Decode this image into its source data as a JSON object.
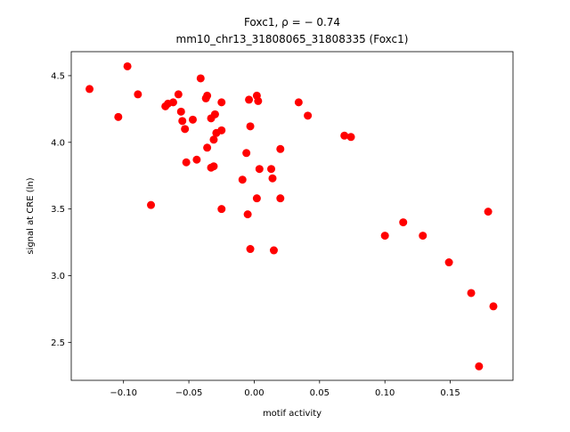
{
  "chart_data": {
    "type": "scatter",
    "title_line1": "Foxc1, ρ = − 0.74",
    "title_line2": "mm10_chr13_31808065_31808335 (Foxc1)",
    "xlabel": "motif activity",
    "ylabel": "signal at CRE (ln)",
    "xlim": [
      -0.14,
      0.198
    ],
    "ylim": [
      2.215,
      4.68
    ],
    "x_ticks": [
      {
        "value": -0.1,
        "label": "−0.10"
      },
      {
        "value": -0.05,
        "label": "−0.05"
      },
      {
        "value": 0.0,
        "label": "0.00"
      },
      {
        "value": 0.05,
        "label": "0.05"
      },
      {
        "value": 0.1,
        "label": "0.10"
      },
      {
        "value": 0.15,
        "label": "0.15"
      }
    ],
    "y_ticks": [
      {
        "value": 2.5,
        "label": "2.5"
      },
      {
        "value": 3.0,
        "label": "3.0"
      },
      {
        "value": 3.5,
        "label": "3.5"
      },
      {
        "value": 4.0,
        "label": "4.0"
      },
      {
        "value": 4.5,
        "label": "4.5"
      }
    ],
    "grid": false,
    "marker_color": "#ff0000",
    "points": [
      {
        "x": -0.126,
        "y": 4.4
      },
      {
        "x": -0.104,
        "y": 4.19
      },
      {
        "x": -0.097,
        "y": 4.57
      },
      {
        "x": -0.089,
        "y": 4.36
      },
      {
        "x": -0.079,
        "y": 3.53
      },
      {
        "x": -0.068,
        "y": 4.27
      },
      {
        "x": -0.066,
        "y": 4.29
      },
      {
        "x": -0.062,
        "y": 4.3
      },
      {
        "x": -0.058,
        "y": 4.36
      },
      {
        "x": -0.056,
        "y": 4.23
      },
      {
        "x": -0.055,
        "y": 4.16
      },
      {
        "x": -0.053,
        "y": 4.1
      },
      {
        "x": -0.052,
        "y": 3.85
      },
      {
        "x": -0.047,
        "y": 4.17
      },
      {
        "x": -0.044,
        "y": 3.87
      },
      {
        "x": -0.041,
        "y": 4.48
      },
      {
        "x": -0.037,
        "y": 4.33
      },
      {
        "x": -0.036,
        "y": 4.35
      },
      {
        "x": -0.036,
        "y": 3.96
      },
      {
        "x": -0.033,
        "y": 4.18
      },
      {
        "x": -0.033,
        "y": 3.81
      },
      {
        "x": -0.031,
        "y": 4.02
      },
      {
        "x": -0.031,
        "y": 3.82
      },
      {
        "x": -0.03,
        "y": 4.21
      },
      {
        "x": -0.029,
        "y": 4.07
      },
      {
        "x": -0.025,
        "y": 4.09
      },
      {
        "x": -0.025,
        "y": 4.3
      },
      {
        "x": -0.025,
        "y": 3.5
      },
      {
        "x": -0.009,
        "y": 3.72
      },
      {
        "x": -0.006,
        "y": 3.92
      },
      {
        "x": -0.005,
        "y": 3.46
      },
      {
        "x": -0.004,
        "y": 4.32
      },
      {
        "x": -0.003,
        "y": 3.2
      },
      {
        "x": -0.003,
        "y": 4.12
      },
      {
        "x": 0.002,
        "y": 4.35
      },
      {
        "x": 0.002,
        "y": 3.58
      },
      {
        "x": 0.003,
        "y": 4.31
      },
      {
        "x": 0.004,
        "y": 3.8
      },
      {
        "x": 0.013,
        "y": 3.8
      },
      {
        "x": 0.014,
        "y": 3.73
      },
      {
        "x": 0.015,
        "y": 3.19
      },
      {
        "x": 0.02,
        "y": 3.95
      },
      {
        "x": 0.02,
        "y": 3.58
      },
      {
        "x": 0.034,
        "y": 4.3
      },
      {
        "x": 0.041,
        "y": 4.2
      },
      {
        "x": 0.069,
        "y": 4.05
      },
      {
        "x": 0.074,
        "y": 4.04
      },
      {
        "x": 0.1,
        "y": 3.3
      },
      {
        "x": 0.114,
        "y": 3.4
      },
      {
        "x": 0.129,
        "y": 3.3
      },
      {
        "x": 0.149,
        "y": 3.1
      },
      {
        "x": 0.166,
        "y": 2.87
      },
      {
        "x": 0.172,
        "y": 2.32
      },
      {
        "x": 0.179,
        "y": 3.48
      },
      {
        "x": 0.183,
        "y": 2.77
      }
    ]
  }
}
